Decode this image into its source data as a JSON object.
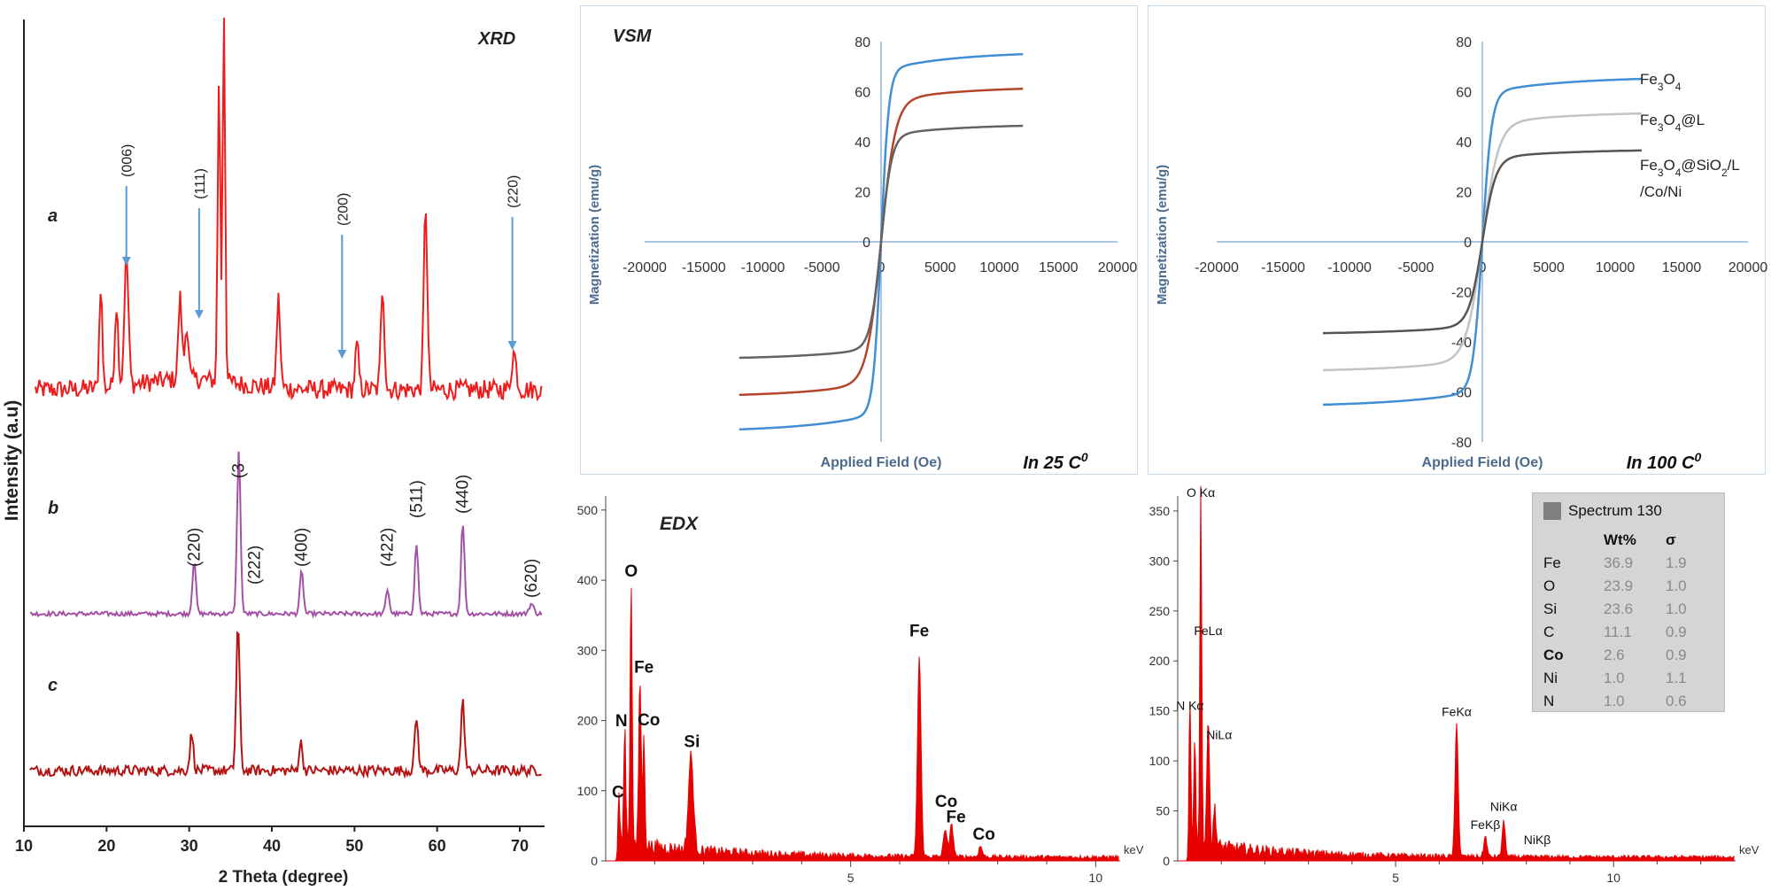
{
  "chart_data": [
    {
      "id": "xrd",
      "type": "line",
      "title": "XRD",
      "xlabel": "2 Theta (degree)",
      "ylabel": "Intensity (a.u)",
      "xlim": [
        10,
        73
      ],
      "x_ticks": [
        "10",
        "20",
        "30",
        "40",
        "50",
        "60",
        "70"
      ],
      "grid": false,
      "series": [
        {
          "name": "a",
          "color": "#ee1d1d",
          "peaks": [
            {
              "x": 19.3,
              "h": 0.28,
              "w": 0.25
            },
            {
              "x": 21.2,
              "h": 0.22,
              "w": 0.3
            },
            {
              "x": 22.4,
              "h": 0.35,
              "w": 0.35
            },
            {
              "x": 28.9,
              "h": 0.22,
              "w": 0.3
            },
            {
              "x": 29.7,
              "h": 0.15,
              "w": 0.3
            },
            {
              "x": 33.6,
              "h": 0.82,
              "w": 0.22
            },
            {
              "x": 34.2,
              "h": 1.0,
              "w": 0.22
            },
            {
              "x": 40.8,
              "h": 0.24,
              "w": 0.3
            },
            {
              "x": 50.3,
              "h": 0.12,
              "w": 0.3
            },
            {
              "x": 53.4,
              "h": 0.28,
              "w": 0.3
            },
            {
              "x": 58.6,
              "h": 0.5,
              "w": 0.3
            },
            {
              "x": 69.3,
              "h": 0.1,
              "w": 0.4
            }
          ],
          "labels": [
            {
              "text": "(006)",
              "x": 22.4
            },
            {
              "text": "(111)",
              "x": 31.2
            },
            {
              "text": "(200)",
              "x": 48.5
            },
            {
              "text": "(220)",
              "x": 69.1
            }
          ]
        },
        {
          "name": "b",
          "color": "#a550a5",
          "peaks": [
            {
              "x": 30.6,
              "h": 0.33,
              "w": 0.3
            },
            {
              "x": 36.0,
              "h": 1.0,
              "w": 0.3
            },
            {
              "x": 43.6,
              "h": 0.26,
              "w": 0.3
            },
            {
              "x": 54.0,
              "h": 0.15,
              "w": 0.3
            },
            {
              "x": 57.5,
              "h": 0.43,
              "w": 0.3
            },
            {
              "x": 63.1,
              "h": 0.56,
              "w": 0.3
            },
            {
              "x": 71.4,
              "h": 0.06,
              "w": 0.4
            }
          ],
          "labels": [
            {
              "text": "(220)",
              "x": 30.6
            },
            {
              "text": "(3",
              "x": 36.0
            },
            {
              "text": "(222)",
              "x": 37.9
            },
            {
              "text": "(400)",
              "x": 43.6
            },
            {
              "text": "(422)",
              "x": 54.0
            },
            {
              "text": "(511)",
              "x": 57.5
            },
            {
              "text": "(440)",
              "x": 63.1
            },
            {
              "text": "(620)",
              "x": 71.4
            }
          ]
        },
        {
          "name": "c",
          "color": "#b41414",
          "peaks": [
            {
              "x": 30.3,
              "h": 0.25,
              "w": 0.3
            },
            {
              "x": 35.9,
              "h": 1.0,
              "w": 0.3
            },
            {
              "x": 43.5,
              "h": 0.19,
              "w": 0.3
            },
            {
              "x": 57.5,
              "h": 0.36,
              "w": 0.3
            },
            {
              "x": 63.1,
              "h": 0.47,
              "w": 0.3
            }
          ],
          "labels": []
        }
      ]
    },
    {
      "id": "vsm25",
      "type": "line",
      "title": "VSM",
      "note": "In 25 C",
      "note_sup": "0",
      "xlabel": "Applied Field (Oe)",
      "ylabel": "Magnetization (emu/g)",
      "xlim": [
        -20000,
        20000
      ],
      "ylim": [
        -80,
        80
      ],
      "x_ticks": [
        "-20000",
        "-15000",
        "-10000",
        "-5000",
        "0",
        "5000",
        "10000",
        "15000",
        "20000"
      ],
      "y_ticks": [
        "0",
        "20",
        "40",
        "60",
        "80"
      ],
      "grid": false,
      "series": [
        {
          "color": "#3f8fd2",
          "ms": 76,
          "k": 650,
          "xmax": 12000
        },
        {
          "color": "#b5452a",
          "ms": 62,
          "k": 1200,
          "xmax": 12000
        },
        {
          "color": "#636363",
          "ms": 47,
          "k": 900,
          "xmax": 12000
        }
      ]
    },
    {
      "id": "vsm100",
      "type": "line",
      "note": "In 100 C",
      "note_sup": "0",
      "xlabel": "Applied Field (Oe)",
      "ylabel": "Magnetization (emu/g)",
      "xlim": [
        -20000,
        20000
      ],
      "ylim": [
        -80,
        80
      ],
      "x_ticks": [
        "-20000",
        "-15000",
        "-10000",
        "-5000",
        "0",
        "5000",
        "10000",
        "15000",
        "20000"
      ],
      "y_ticks": [
        "-80",
        "-60",
        "-40",
        "-20",
        "0",
        "20",
        "40",
        "60",
        "80"
      ],
      "grid": false,
      "series": [
        {
          "name": "Fe3O4",
          "color": "#3f8fd2",
          "ms": 66,
          "k": 700,
          "xmax": 12000
        },
        {
          "name": "Fe3O4@L",
          "color": "#c3c3c3",
          "ms": 52,
          "k": 1200,
          "xmax": 12000
        },
        {
          "name": "Fe3O4@SiO2/L/Co/Ni",
          "color": "#555555",
          "ms": 37,
          "k": 1000,
          "xmax": 12000
        }
      ]
    },
    {
      "id": "edx1",
      "type": "bar",
      "title": "EDX",
      "xlabel": "keV",
      "xlim": [
        0,
        10.5
      ],
      "ylim": [
        0,
        520
      ],
      "x_ticks": [
        "5",
        "10"
      ],
      "y_ticks": [
        "0",
        "100",
        "200",
        "300",
        "400",
        "500"
      ],
      "grid": false,
      "color": "#e60000",
      "peaks": [
        {
          "x": 0.27,
          "h": 60,
          "w": 0.03
        },
        {
          "x": 0.39,
          "h": 160,
          "w": 0.03
        },
        {
          "x": 0.52,
          "h": 375,
          "w": 0.03
        },
        {
          "x": 0.7,
          "h": 235,
          "w": 0.035
        },
        {
          "x": 0.78,
          "h": 150,
          "w": 0.03
        },
        {
          "x": 1.74,
          "h": 135,
          "w": 0.07
        },
        {
          "x": 6.4,
          "h": 285,
          "w": 0.05
        },
        {
          "x": 6.93,
          "h": 40,
          "w": 0.05
        },
        {
          "x": 7.06,
          "h": 45,
          "w": 0.05
        },
        {
          "x": 7.65,
          "h": 15,
          "w": 0.05
        }
      ],
      "labels": [
        {
          "text": "C",
          "x": 0.25,
          "y": 90
        },
        {
          "text": "N",
          "x": 0.32,
          "y": 192
        },
        {
          "text": "O",
          "x": 0.52,
          "y": 405
        },
        {
          "text": "Fe",
          "x": 0.78,
          "y": 268
        },
        {
          "text": "Co",
          "x": 0.88,
          "y": 193
        },
        {
          "text": "Si",
          "x": 1.76,
          "y": 162
        },
        {
          "text": "Fe",
          "x": 6.4,
          "y": 320
        },
        {
          "text": "Co",
          "x": 6.95,
          "y": 77
        },
        {
          "text": "Fe",
          "x": 7.15,
          "y": 55
        },
        {
          "text": "Co",
          "x": 7.72,
          "y": 30
        }
      ]
    },
    {
      "id": "edx2",
      "type": "bar",
      "xlabel": "keV",
      "xlim": [
        0,
        12.8
      ],
      "ylim": [
        0,
        365
      ],
      "x_ticks": [
        "5",
        "10"
      ],
      "y_ticks": [
        "0",
        "50",
        "100",
        "150",
        "200",
        "250",
        "300",
        "350"
      ],
      "grid": false,
      "color": "#e60000",
      "peaks": [
        {
          "x": 0.28,
          "h": 140,
          "w": 0.03
        },
        {
          "x": 0.39,
          "h": 110,
          "w": 0.03
        },
        {
          "x": 0.53,
          "h": 355,
          "w": 0.03
        },
        {
          "x": 0.7,
          "h": 135,
          "w": 0.04
        },
        {
          "x": 0.85,
          "h": 40,
          "w": 0.04
        },
        {
          "x": 6.4,
          "h": 133,
          "w": 0.05
        },
        {
          "x": 7.06,
          "h": 20,
          "w": 0.05
        },
        {
          "x": 7.48,
          "h": 35,
          "w": 0.05
        }
      ],
      "labels": [
        {
          "text": "O Kα",
          "x": 0.53,
          "y": 364
        },
        {
          "text": "FeLα",
          "x": 0.7,
          "y": 226
        },
        {
          "text": "N Kα",
          "x": 0.28,
          "y": 151
        },
        {
          "text": "NiLα",
          "x": 0.95,
          "y": 122
        },
        {
          "text": "FeKα",
          "x": 6.4,
          "y": 145
        },
        {
          "text": "NiKα",
          "x": 7.48,
          "y": 50
        },
        {
          "text": "FeKβ",
          "x": 7.06,
          "y": 32
        },
        {
          "text": "NiKβ",
          "x": 8.25,
          "y": 17
        }
      ]
    }
  ],
  "edx_table": {
    "title": "Spectrum 130",
    "columns": [
      "",
      "Wt%",
      "σ"
    ],
    "rows": [
      {
        "el": "Fe",
        "wt": "36.9",
        "sigma": "1.9"
      },
      {
        "el": "O",
        "wt": "23.9",
        "sigma": "1.0"
      },
      {
        "el": "Si",
        "wt": "23.6",
        "sigma": "1.0"
      },
      {
        "el": "C",
        "wt": "11.1",
        "sigma": "0.9"
      },
      {
        "el": "Co",
        "wt": "2.6",
        "sigma": "0.9"
      },
      {
        "el": "Ni",
        "wt": "1.0",
        "sigma": "1.1"
      },
      {
        "el": "N",
        "wt": "1.0",
        "sigma": "0.6"
      }
    ]
  }
}
